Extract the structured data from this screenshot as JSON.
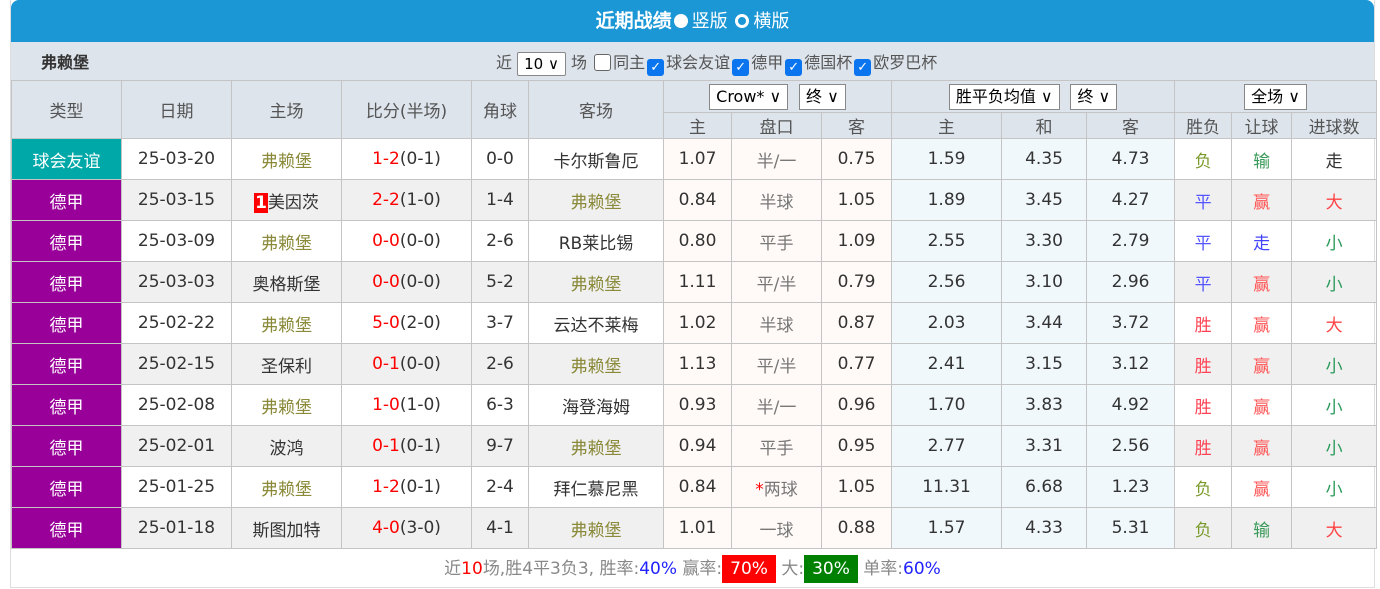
{
  "title": {
    "main": "近期战绩",
    "opt1": "竖版",
    "opt2": "横版"
  },
  "filter": {
    "team": "弗赖堡",
    "near": "近",
    "count": "10",
    "unit": "场",
    "same_home": "同主",
    "types": [
      "球会友谊",
      "德甲",
      "德国杯",
      "欧罗巴杯"
    ]
  },
  "headers": {
    "type": "类型",
    "date": "日期",
    "home": "主场",
    "score": "比分(半场)",
    "corner": "角球",
    "away": "客场",
    "company": "Crow*",
    "phase": "终",
    "avg": "胜平负均值",
    "phase2": "终",
    "scope": "全场",
    "sub": [
      "主",
      "盘口",
      "客",
      "主",
      "和",
      "客",
      "胜负",
      "让球",
      "进球数"
    ]
  },
  "rows": [
    {
      "type": "球会友谊",
      "date": "25-03-20",
      "home": "弗赖堡",
      "rank": "",
      "score": "1-2",
      "half": "(0-1)",
      "corner": "0-0",
      "away": "卡尔斯鲁厄",
      "o1": "1.07",
      "hc": "半/一",
      "o2": "0.75",
      "w": "1.59",
      "d": "4.35",
      "l": "4.73",
      "res": "负",
      "ah": "输",
      "ou": "走"
    },
    {
      "type": "德甲",
      "date": "25-03-15",
      "home": "美因茨",
      "rank": "1",
      "score": "2-2",
      "half": "(1-0)",
      "corner": "1-4",
      "away": "弗赖堡",
      "o1": "0.84",
      "hc": "半球",
      "o2": "1.05",
      "w": "1.89",
      "d": "3.45",
      "l": "4.27",
      "res": "平",
      "ah": "赢",
      "ou": "大"
    },
    {
      "type": "德甲",
      "date": "25-03-09",
      "home": "弗赖堡",
      "rank": "",
      "score": "0-0",
      "half": "(0-0)",
      "corner": "2-6",
      "away": "RB莱比锡",
      "o1": "0.80",
      "hc": "平手",
      "o2": "1.09",
      "w": "2.55",
      "d": "3.30",
      "l": "2.79",
      "res": "平",
      "ah": "走",
      "ou": "小"
    },
    {
      "type": "德甲",
      "date": "25-03-03",
      "home": "奥格斯堡",
      "rank": "",
      "score": "0-0",
      "half": "(0-0)",
      "corner": "5-2",
      "away": "弗赖堡",
      "o1": "1.11",
      "hc": "平/半",
      "o2": "0.79",
      "w": "2.56",
      "d": "3.10",
      "l": "2.96",
      "res": "平",
      "ah": "赢",
      "ou": "小"
    },
    {
      "type": "德甲",
      "date": "25-02-22",
      "home": "弗赖堡",
      "rank": "",
      "score": "5-0",
      "half": "(2-0)",
      "corner": "3-7",
      "away": "云达不莱梅",
      "o1": "1.02",
      "hc": "半球",
      "o2": "0.87",
      "w": "2.03",
      "d": "3.44",
      "l": "3.72",
      "res": "胜",
      "ah": "赢",
      "ou": "大"
    },
    {
      "type": "德甲",
      "date": "25-02-15",
      "home": "圣保利",
      "rank": "",
      "score": "0-1",
      "half": "(0-0)",
      "corner": "2-6",
      "away": "弗赖堡",
      "o1": "1.13",
      "hc": "平/半",
      "o2": "0.77",
      "w": "2.41",
      "d": "3.15",
      "l": "3.12",
      "res": "胜",
      "ah": "赢",
      "ou": "小"
    },
    {
      "type": "德甲",
      "date": "25-02-08",
      "home": "弗赖堡",
      "rank": "",
      "score": "1-0",
      "half": "(1-0)",
      "corner": "6-3",
      "away": "海登海姆",
      "o1": "0.93",
      "hc": "半/一",
      "o2": "0.96",
      "w": "1.70",
      "d": "3.83",
      "l": "4.92",
      "res": "胜",
      "ah": "赢",
      "ou": "小"
    },
    {
      "type": "德甲",
      "date": "25-02-01",
      "home": "波鸿",
      "rank": "",
      "score": "0-1",
      "half": "(0-1)",
      "corner": "9-7",
      "away": "弗赖堡",
      "o1": "0.94",
      "hc": "平手",
      "o2": "0.95",
      "w": "2.77",
      "d": "3.31",
      "l": "2.56",
      "res": "胜",
      "ah": "赢",
      "ou": "小"
    },
    {
      "type": "德甲",
      "date": "25-01-25",
      "home": "弗赖堡",
      "rank": "",
      "score": "1-2",
      "half": "(0-1)",
      "corner": "2-4",
      "away": "拜仁慕尼黑",
      "o1": "0.84",
      "hc": "*两球",
      "o2": "1.05",
      "w": "11.31",
      "d": "6.68",
      "l": "1.23",
      "res": "负",
      "ah": "赢",
      "ou": "小"
    },
    {
      "type": "德甲",
      "date": "25-01-18",
      "home": "斯图加特",
      "rank": "",
      "score": "4-0",
      "half": "(3-0)",
      "corner": "4-1",
      "away": "弗赖堡",
      "o1": "1.01",
      "hc": "一球",
      "o2": "0.88",
      "w": "1.57",
      "d": "4.33",
      "l": "5.31",
      "res": "负",
      "ah": "输",
      "ou": "大"
    }
  ],
  "summary": {
    "p1": "近",
    "n": "10",
    "p2": "场,胜4平3负3, 胜率:",
    "winrate": "40%",
    "p3": " 赢率:",
    "ahrate": "70%",
    "p4": " 大:",
    "bigrate": "30%",
    "p5": " 单率:",
    "oddrate": "60%"
  },
  "colors": {
    "header": "#1b97d6",
    "bundesliga": "#990099",
    "friendly": "#00a8a8"
  }
}
